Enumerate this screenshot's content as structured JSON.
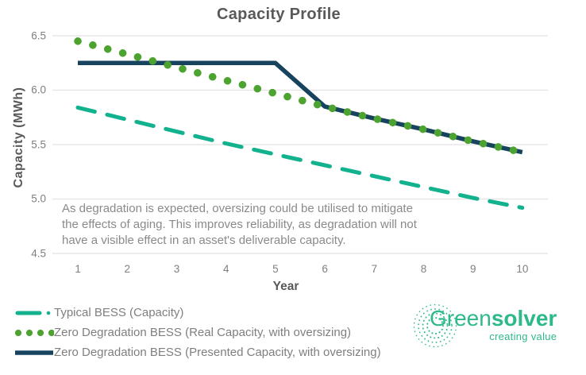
{
  "title": "Capacity Profile",
  "annotation": {
    "lines": [
      "As degradation is expected, oversizing could be utilised to mitigate",
      "the effects of aging. This improves reliability, as degradation will not",
      "have a visible effect in an asset's deliverable capacity."
    ]
  },
  "legend": {
    "items": [
      {
        "label": "Typical BESS (Capacity)",
        "style": "dashed"
      },
      {
        "label": "Zero Degradation BESS (Real Capacity, with oversizing)",
        "style": "dotted"
      },
      {
        "label": "Zero Degradation BESS (Presented Capacity, with oversizing)",
        "style": "solid"
      }
    ]
  },
  "logo": {
    "brand_regular": "Green",
    "brand_bold": "solver",
    "tagline": "creating value"
  },
  "colors": {
    "teal": "#13b28e",
    "green": "#4da32f",
    "navy": "#17435f",
    "logo_green": "#2eb98a",
    "text_dark": "#595959",
    "text_gray": "#7f7f7f",
    "grid": "#e2e2e2"
  },
  "chart_data": {
    "type": "line",
    "title": "Capacity Profile",
    "xlabel": "Year",
    "ylabel": "Capacity (MWh)",
    "x": [
      1,
      2,
      3,
      4,
      5,
      6,
      7,
      8,
      9,
      10
    ],
    "xticks": [
      "1",
      "2",
      "3",
      "4",
      "5",
      "6",
      "7",
      "8",
      "9",
      "10"
    ],
    "yticks": [
      "6.5",
      "6.0",
      "5.5",
      "5.0",
      "4.5"
    ],
    "ygrid_values": [
      6.5,
      6.0,
      5.5,
      5.0,
      4.5
    ],
    "ylim": [
      4.5,
      6.5
    ],
    "grid": "horizontal-only",
    "legend_position": "bottom-left",
    "series": [
      {
        "name": "Typical BESS (Capacity)",
        "style": "dashed",
        "color": "#13b28e",
        "values": [
          5.84,
          5.73,
          5.62,
          5.51,
          5.41,
          5.31,
          5.21,
          5.11,
          5.01,
          4.92
        ]
      },
      {
        "name": "Zero Degradation BESS (Real Capacity, with oversizing)",
        "style": "dotted",
        "color": "#4da32f",
        "values": [
          6.45,
          6.33,
          6.21,
          6.09,
          5.97,
          5.85,
          5.74,
          5.64,
          5.53,
          5.43
        ]
      },
      {
        "name": "Zero Degradation BESS (Presented Capacity, with oversizing)",
        "style": "solid",
        "color": "#17435f",
        "values": [
          6.25,
          6.25,
          6.25,
          6.25,
          6.25,
          5.85,
          5.74,
          5.64,
          5.53,
          5.43
        ]
      }
    ]
  }
}
